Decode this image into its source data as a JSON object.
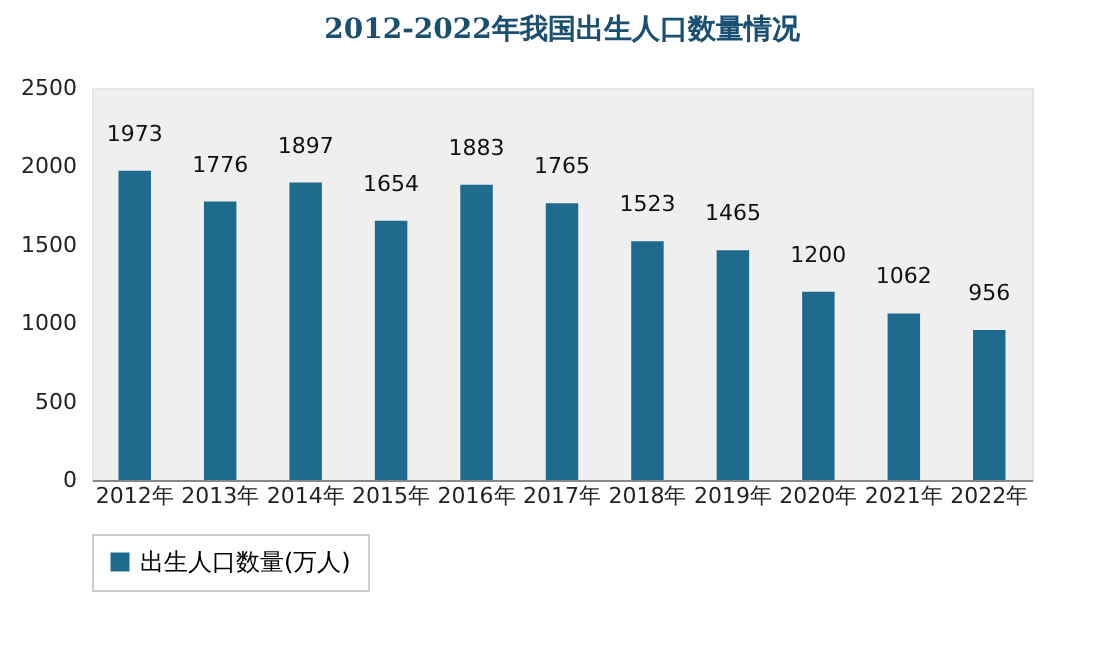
{
  "chart_data": {
    "type": "bar",
    "title": "2012-2022年我国出生人口数量情况",
    "categories": [
      "2012年",
      "2013年",
      "2014年",
      "2015年",
      "2016年",
      "2017年",
      "2018年",
      "2019年",
      "2020年",
      "2021年",
      "2022年"
    ],
    "series": [
      {
        "name": "出生人口数量(万人)",
        "color": "#1f6b8e",
        "values": [
          1973,
          1776,
          1897,
          1654,
          1883,
          1765,
          1523,
          1465,
          1200,
          1062,
          956
        ]
      }
    ],
    "ylim": [
      0,
      2500
    ],
    "yticks": [
      0,
      500,
      1000,
      1500,
      2000,
      2500
    ],
    "grid": false,
    "legend": "bottom",
    "data_labels": true
  }
}
